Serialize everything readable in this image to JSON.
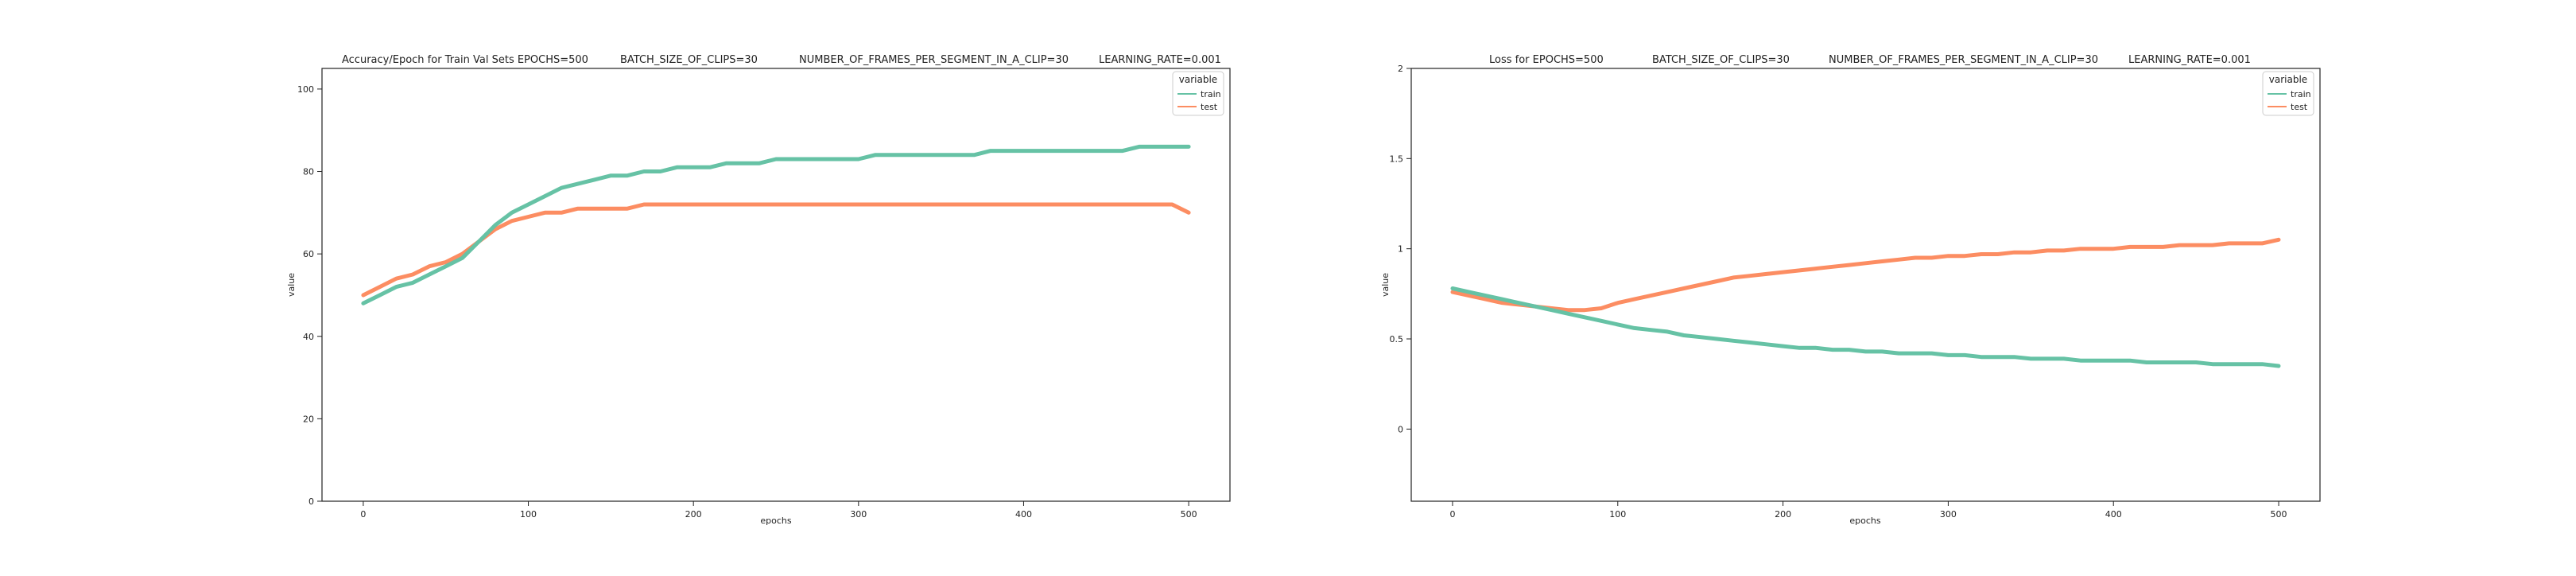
{
  "figure": {
    "left": {
      "title_parts": [
        "Accuracy/Epoch for Train Val Sets EPOCHS=500",
        "BATCH_SIZE_OF_CLIPS=30",
        "NUMBER_OF_FRAMES_PER_SEGMENT_IN_A_CLIP=30",
        "LEARNING_RATE=0.001"
      ],
      "xlabel": "epochs",
      "ylabel": "value",
      "legend_title": "variable",
      "legend_items": [
        "train",
        "test"
      ]
    },
    "right": {
      "title_parts": [
        "Loss for  EPOCHS=500",
        "BATCH_SIZE_OF_CLIPS=30",
        "NUMBER_OF_FRAMES_PER_SEGMENT_IN_A_CLIP=30",
        "LEARNING_RATE=0.001"
      ],
      "xlabel": "epochs",
      "ylabel": "value",
      "legend_title": "variable",
      "legend_items": [
        "train",
        "test"
      ]
    }
  },
  "colors": {
    "train": "#66c2a5",
    "test": "#fc8d62",
    "axis": "#222222"
  },
  "chart_data": [
    {
      "type": "line",
      "title": "Accuracy/Epoch for Train Val Sets EPOCHS=500 BATCH_SIZE_OF_CLIPS=30 NUMBER_OF_FRAMES_PER_SEGMENT_IN_A_CLIP=30 LEARNING_RATE=0.001",
      "xlabel": "epochs",
      "ylabel": "value",
      "xlim": [
        -25,
        525
      ],
      "ylim": [
        0,
        105
      ],
      "xticks": [
        0,
        100,
        200,
        300,
        400,
        500
      ],
      "yticks": [
        0,
        20,
        40,
        60,
        80,
        100
      ],
      "grid": false,
      "legend": "top-right",
      "series": [
        {
          "name": "train",
          "x": [
            0,
            10,
            20,
            30,
            40,
            50,
            60,
            70,
            80,
            90,
            100,
            110,
            120,
            130,
            140,
            150,
            160,
            170,
            180,
            190,
            200,
            210,
            220,
            230,
            240,
            250,
            260,
            270,
            280,
            290,
            300,
            310,
            320,
            330,
            340,
            350,
            360,
            370,
            380,
            390,
            400,
            410,
            420,
            430,
            440,
            450,
            460,
            470,
            480,
            490,
            500
          ],
          "values": [
            48,
            50,
            52,
            53,
            55,
            57,
            59,
            63,
            67,
            70,
            72,
            74,
            76,
            77,
            78,
            79,
            79,
            80,
            80,
            81,
            81,
            81,
            82,
            82,
            82,
            83,
            83,
            83,
            83,
            83,
            83,
            84,
            84,
            84,
            84,
            84,
            84,
            84,
            85,
            85,
            85,
            85,
            85,
            85,
            85,
            85,
            85,
            86,
            86,
            86,
            86
          ]
        },
        {
          "name": "test",
          "x": [
            0,
            10,
            20,
            30,
            40,
            50,
            60,
            70,
            80,
            90,
            100,
            110,
            120,
            130,
            140,
            150,
            160,
            170,
            180,
            190,
            200,
            210,
            220,
            230,
            240,
            250,
            260,
            270,
            280,
            290,
            300,
            310,
            320,
            330,
            340,
            350,
            360,
            370,
            380,
            390,
            400,
            410,
            420,
            430,
            440,
            450,
            460,
            470,
            480,
            490,
            500
          ],
          "values": [
            50,
            52,
            54,
            55,
            57,
            58,
            60,
            63,
            66,
            68,
            69,
            70,
            70,
            71,
            71,
            71,
            71,
            72,
            72,
            72,
            72,
            72,
            72,
            72,
            72,
            72,
            72,
            72,
            72,
            72,
            72,
            72,
            72,
            72,
            72,
            72,
            72,
            72,
            72,
            72,
            72,
            72,
            72,
            72,
            72,
            72,
            72,
            72,
            72,
            72,
            70
          ]
        }
      ]
    },
    {
      "type": "line",
      "title": "Loss for  EPOCHS=500 BATCH_SIZE_OF_CLIPS=30 NUMBER_OF_FRAMES_PER_SEGMENT_IN_A_CLIP=30 LEARNING_RATE=0.001",
      "xlabel": "epochs",
      "ylabel": "value",
      "xlim": [
        -25,
        525
      ],
      "ylim": [
        -0.4,
        2.0
      ],
      "xticks": [
        0,
        100,
        200,
        300,
        400,
        500
      ],
      "yticks": [
        0.0,
        0.5,
        1.0,
        1.5,
        2.0
      ],
      "grid": false,
      "legend": "top-right",
      "series": [
        {
          "name": "train",
          "x": [
            0,
            10,
            20,
            30,
            40,
            50,
            60,
            70,
            80,
            90,
            100,
            110,
            120,
            130,
            140,
            150,
            160,
            170,
            180,
            190,
            200,
            210,
            220,
            230,
            240,
            250,
            260,
            270,
            280,
            290,
            300,
            310,
            320,
            330,
            340,
            350,
            360,
            370,
            380,
            390,
            400,
            410,
            420,
            430,
            440,
            450,
            460,
            470,
            480,
            490,
            500
          ],
          "values": [
            0.78,
            0.76,
            0.74,
            0.72,
            0.7,
            0.68,
            0.66,
            0.64,
            0.62,
            0.6,
            0.58,
            0.56,
            0.55,
            0.54,
            0.52,
            0.51,
            0.5,
            0.49,
            0.48,
            0.47,
            0.46,
            0.45,
            0.45,
            0.44,
            0.44,
            0.43,
            0.43,
            0.42,
            0.42,
            0.42,
            0.41,
            0.41,
            0.4,
            0.4,
            0.4,
            0.39,
            0.39,
            0.39,
            0.38,
            0.38,
            0.38,
            0.38,
            0.37,
            0.37,
            0.37,
            0.37,
            0.36,
            0.36,
            0.36,
            0.36,
            0.35
          ]
        },
        {
          "name": "test",
          "x": [
            0,
            10,
            20,
            30,
            40,
            50,
            60,
            70,
            80,
            90,
            100,
            110,
            120,
            130,
            140,
            150,
            160,
            170,
            180,
            190,
            200,
            210,
            220,
            230,
            240,
            250,
            260,
            270,
            280,
            290,
            300,
            310,
            320,
            330,
            340,
            350,
            360,
            370,
            380,
            390,
            400,
            410,
            420,
            430,
            440,
            450,
            460,
            470,
            480,
            490,
            500
          ],
          "values": [
            0.76,
            0.74,
            0.72,
            0.7,
            0.69,
            0.68,
            0.67,
            0.66,
            0.66,
            0.67,
            0.7,
            0.72,
            0.74,
            0.76,
            0.78,
            0.8,
            0.82,
            0.84,
            0.85,
            0.86,
            0.87,
            0.88,
            0.89,
            0.9,
            0.91,
            0.92,
            0.93,
            0.94,
            0.95,
            0.95,
            0.96,
            0.96,
            0.97,
            0.97,
            0.98,
            0.98,
            0.99,
            0.99,
            1.0,
            1.0,
            1.0,
            1.01,
            1.01,
            1.01,
            1.02,
            1.02,
            1.02,
            1.03,
            1.03,
            1.03,
            1.05
          ]
        }
      ]
    }
  ]
}
